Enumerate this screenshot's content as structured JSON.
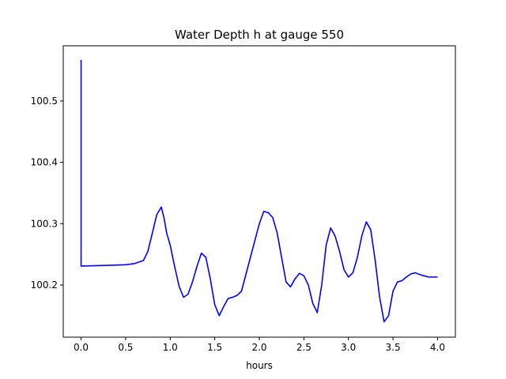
{
  "chart_data": {
    "type": "line",
    "title": "Water Depth h at gauge 550",
    "xlabel": "hours",
    "ylabel": "",
    "xlim": [
      -0.2,
      4.2
    ],
    "ylim": [
      100.115,
      100.59
    ],
    "xticks": [
      0.0,
      0.5,
      1.0,
      1.5,
      2.0,
      2.5,
      3.0,
      3.5,
      4.0
    ],
    "xtick_labels": [
      "0.0",
      "0.5",
      "1.0",
      "1.5",
      "2.0",
      "2.5",
      "3.0",
      "3.5",
      "4.0"
    ],
    "yticks": [
      100.2,
      100.3,
      100.4,
      100.5
    ],
    "ytick_labels": [
      "100.2",
      "100.3",
      "100.4",
      "100.5"
    ],
    "grid": false,
    "series": [
      {
        "color": "#0000ff",
        "x": [
          0.0,
          0.0,
          0.3,
          0.5,
          0.6,
          0.7,
          0.75,
          0.8,
          0.85,
          0.9,
          0.93,
          0.96,
          1.0,
          1.05,
          1.1,
          1.15,
          1.2,
          1.25,
          1.3,
          1.35,
          1.4,
          1.45,
          1.5,
          1.55,
          1.6,
          1.65,
          1.7,
          1.75,
          1.8,
          1.9,
          2.0,
          2.05,
          2.1,
          2.15,
          2.2,
          2.25,
          2.3,
          2.35,
          2.4,
          2.45,
          2.5,
          2.55,
          2.6,
          2.65,
          2.7,
          2.75,
          2.8,
          2.85,
          2.9,
          2.95,
          3.0,
          3.05,
          3.1,
          3.15,
          3.2,
          3.25,
          3.3,
          3.35,
          3.4,
          3.45,
          3.5,
          3.55,
          3.6,
          3.65,
          3.7,
          3.75,
          3.8,
          3.85,
          3.9,
          3.95,
          4.0
        ],
        "y": [
          100.567,
          100.231,
          100.232,
          100.233,
          100.235,
          100.24,
          100.255,
          100.285,
          100.315,
          100.327,
          100.31,
          100.285,
          100.265,
          100.23,
          100.198,
          100.18,
          100.185,
          100.205,
          100.23,
          100.252,
          100.245,
          100.21,
          100.168,
          100.15,
          100.165,
          100.178,
          100.18,
          100.183,
          100.19,
          100.245,
          100.3,
          100.32,
          100.318,
          100.31,
          100.285,
          100.245,
          100.205,
          100.197,
          100.21,
          100.219,
          100.215,
          100.2,
          100.17,
          100.155,
          100.2,
          100.265,
          100.293,
          100.28,
          100.255,
          100.225,
          100.213,
          100.22,
          100.245,
          100.28,
          100.303,
          100.29,
          100.24,
          100.18,
          100.14,
          100.15,
          100.19,
          100.205,
          100.207,
          100.213,
          100.218,
          100.22,
          100.217,
          100.215,
          100.213,
          100.213,
          100.213
        ]
      }
    ]
  }
}
